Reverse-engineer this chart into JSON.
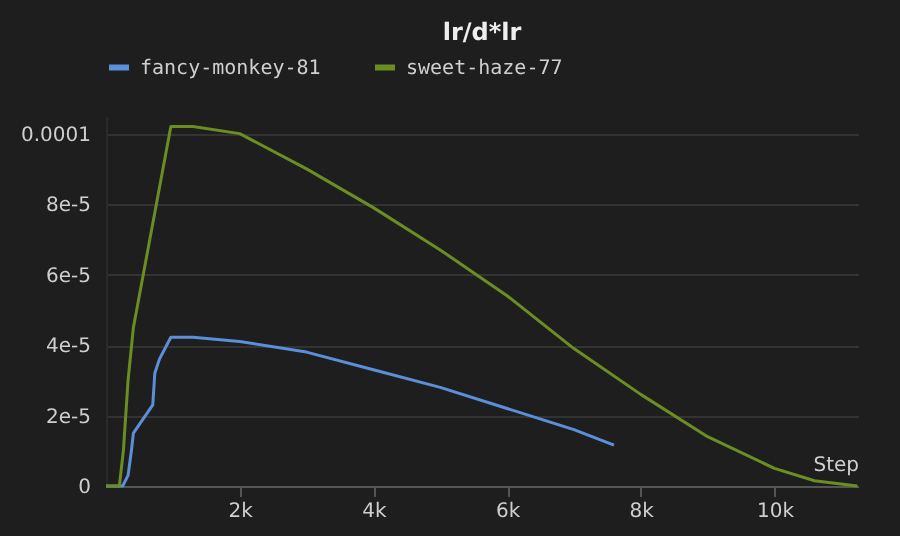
{
  "chart_data": {
    "type": "line",
    "title": "lr/d*lr",
    "xlabel": "Step",
    "xlim": [
      0,
      11250
    ],
    "ylim": [
      0,
      0.000105
    ],
    "xticks": [
      {
        "value": 2000,
        "label": "2k"
      },
      {
        "value": 4000,
        "label": "4k"
      },
      {
        "value": 6000,
        "label": "6k"
      },
      {
        "value": 8000,
        "label": "8k"
      },
      {
        "value": 10000,
        "label": "10k"
      }
    ],
    "yticks": [
      {
        "value": 0,
        "label": "0"
      },
      {
        "value": 2e-05,
        "label": "2e-5"
      },
      {
        "value": 4e-05,
        "label": "4e-5"
      },
      {
        "value": 6e-05,
        "label": "6e-5"
      },
      {
        "value": 8e-05,
        "label": "8e-5"
      },
      {
        "value": 0.0001,
        "label": "0.0001"
      }
    ],
    "grid": "y",
    "legend": "top",
    "line_style": "solid",
    "series": [
      {
        "name": "fancy-monkey-81",
        "color": "#5b8fd9",
        "x": [
          0,
          250,
          330,
          380,
          410,
          700,
          730,
          800,
          970,
          1300,
          2000,
          3000,
          4000,
          5000,
          6000,
          7000,
          7600
        ],
        "values": [
          0,
          0,
          3e-06,
          1e-05,
          1.5e-05,
          2.3e-05,
          3.2e-05,
          3.6e-05,
          4.22e-05,
          4.22e-05,
          4.1e-05,
          3.8e-05,
          3.3e-05,
          2.8e-05,
          2.2e-05,
          1.6e-05,
          1.16e-05
        ]
      },
      {
        "name": "sweet-haze-77",
        "color": "#6b8e23",
        "x": [
          0,
          200,
          260,
          330,
          410,
          970,
          1300,
          2000,
          3000,
          4000,
          5000,
          6000,
          7000,
          8000,
          9000,
          10000,
          10600,
          11240
        ],
        "values": [
          0,
          0,
          1e-05,
          3e-05,
          4.5e-05,
          0.000102,
          0.000102,
          0.0001,
          9e-05,
          7.9e-05,
          6.7e-05,
          5.4e-05,
          3.9e-05,
          2.6e-05,
          1.4e-05,
          5e-06,
          1.5e-06,
          0
        ]
      }
    ]
  }
}
